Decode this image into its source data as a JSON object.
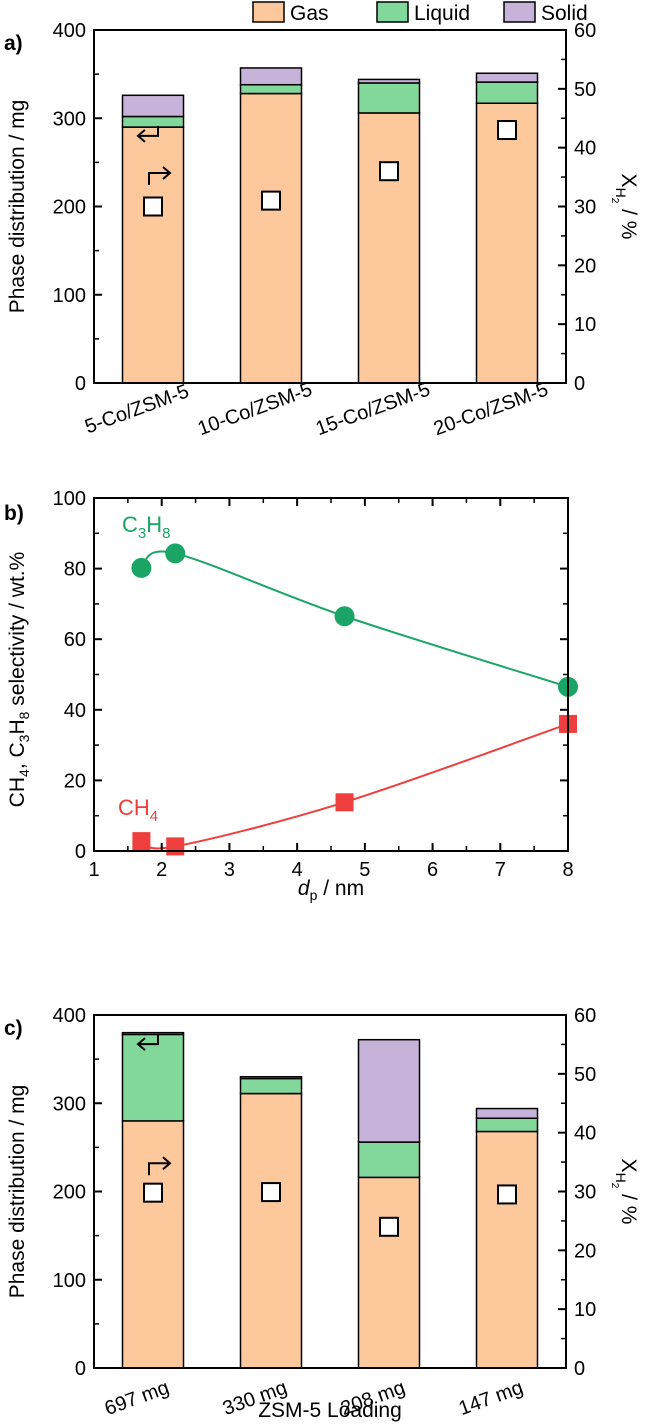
{
  "legend": [
    {
      "label": "Gas",
      "color": "#fdc89b"
    },
    {
      "label": "Liquid",
      "color": "#82d89a"
    },
    {
      "label": "Solid",
      "color": "#c7b3da"
    }
  ],
  "chart_data": [
    {
      "panel": "a)",
      "type": "bar",
      "stacked": true,
      "categories": [
        "5-Co/ZSM-5",
        "10-Co/ZSM-5",
        "15-Co/ZSM-5",
        "20-Co/ZSM-5"
      ],
      "series": [
        {
          "name": "Gas",
          "values": [
            290,
            328,
            306,
            317
          ]
        },
        {
          "name": "Liquid",
          "values": [
            12,
            10,
            34,
            24
          ]
        },
        {
          "name": "Solid",
          "values": [
            24,
            19,
            4,
            10
          ]
        }
      ],
      "secondary": {
        "name": "X_H2",
        "marker": "open-square",
        "values": [
          30,
          31,
          36,
          43
        ]
      },
      "ylabel": "Phase distribution / mg",
      "ylim": [
        0,
        400
      ],
      "yticks": [
        "0",
        "100",
        "200",
        "300",
        "400"
      ],
      "y2label_main": "X",
      "y2label_sub": "H",
      "y2label_sub2": "2",
      "y2label_tail": " / %",
      "y2lim": [
        0,
        60
      ],
      "y2ticks": [
        "0",
        "10",
        "20",
        "30",
        "40",
        "50",
        "60"
      ]
    },
    {
      "panel": "b)",
      "type": "line",
      "series": [
        {
          "name": "C3H8",
          "color": "#1aa566",
          "marker": "circle",
          "x": [
            1.7,
            2.2,
            4.7,
            8.0
          ],
          "y": [
            80.2,
            84.3,
            66.5,
            46.5
          ],
          "label_main": "C",
          "label_sub1": "3",
          "label_mid": "H",
          "label_sub2": "8"
        },
        {
          "name": "CH4",
          "color": "#ef3e3e",
          "marker": "square",
          "x": [
            1.7,
            2.2,
            4.7,
            8.0
          ],
          "y": [
            2.8,
            1.3,
            13.8,
            36.0
          ],
          "label_main": "CH",
          "label_sub1": "4"
        }
      ],
      "ylabel_parts": [
        "CH",
        "4",
        ", C",
        "3",
        "H",
        "8",
        " selectivity / wt.%"
      ],
      "xlabel_italic": "d",
      "xlabel_sub": "p",
      "xlabel_tail": " / nm",
      "xlim": [
        1,
        8
      ],
      "xticks": [
        "1",
        "2",
        "3",
        "4",
        "5",
        "6",
        "7",
        "8"
      ],
      "ylim": [
        0,
        100
      ],
      "yticks": [
        "0",
        "20",
        "40",
        "60",
        "80",
        "100"
      ]
    },
    {
      "panel": "c)",
      "type": "bar",
      "stacked": true,
      "categories": [
        "697 mg",
        "330 mg",
        "208 mg",
        "147 mg"
      ],
      "series": [
        {
          "name": "Gas",
          "values": [
            280,
            311,
            216,
            268
          ]
        },
        {
          "name": "Liquid",
          "values": [
            98,
            17,
            40,
            15
          ]
        },
        {
          "name": "Solid",
          "values": [
            2,
            2,
            116,
            11
          ]
        }
      ],
      "secondary": {
        "name": "X_H2",
        "marker": "open-square",
        "values": [
          29.8,
          29.9,
          24,
          29.5
        ]
      },
      "xlabel": "ZSM-5 Loading",
      "ylabel": "Phase distribution / mg",
      "ylim": [
        0,
        400
      ],
      "yticks": [
        "0",
        "100",
        "200",
        "300",
        "400"
      ],
      "y2label_main": "X",
      "y2label_sub": "H",
      "y2label_sub2": "2",
      "y2label_tail": " / %",
      "y2lim": [
        0,
        60
      ],
      "y2ticks": [
        "0",
        "10",
        "20",
        "30",
        "40",
        "50",
        "60"
      ]
    }
  ]
}
